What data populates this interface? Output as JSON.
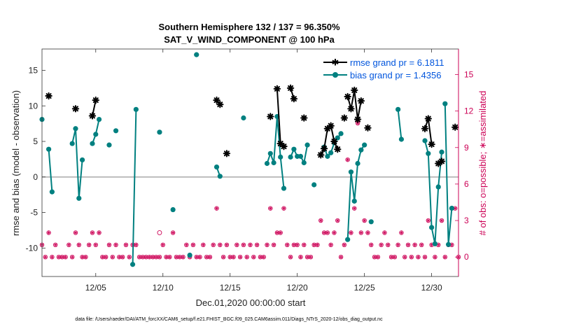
{
  "chart_data": {
    "type": "line",
    "title": "Southern Hemisphere 132 / 137 = 96.350%",
    "subtitle": "SAT_V_WIND_COMPONENT @ 100 hPa",
    "xlabel": "Dec.01,2020 00:00:00 start",
    "ylabel": "rmse and bias (model - observation)",
    "y2label": "# of obs: o=possible; ∗=assimilated",
    "footer": "data file: /Users/raeder/DAI/ATM_forcXX/CAM6_setup/f.e21.FHIST_BGC.f09_025.CAM6assim.011/Diags_NTrS_2020-12/obs_diag_output.nc",
    "xlim": [
      1.0,
      32.0
    ],
    "ylim": [
      -14,
      18
    ],
    "y2lim": [
      -1.6,
      17.1
    ],
    "x_ticks": [
      5,
      10,
      15,
      20,
      25,
      30
    ],
    "x_tick_labels": [
      "12/05",
      "12/10",
      "12/15",
      "12/20",
      "12/25",
      "12/30"
    ],
    "y_ticks": [
      -10,
      -5,
      0,
      5,
      10,
      15
    ],
    "y_tick_labels": [
      "-10",
      "-5",
      "0",
      "5",
      "10",
      "15"
    ],
    "y2_ticks": [
      0,
      3,
      6,
      9,
      12,
      15
    ],
    "y2_tick_labels": [
      "0",
      "3",
      "6",
      "9",
      "12",
      "15"
    ],
    "zero_line": 0,
    "legend": [
      {
        "label": "rmse grand pr = 6.1811",
        "series": "rmse"
      },
      {
        "label": "bias grand pr = 1.4356",
        "series": "bias"
      }
    ],
    "colors": {
      "rmse": "#000000",
      "bias": "#008080",
      "obs": "#cc0055",
      "zero": "#aaaaaa",
      "axis_right": "#cc0055"
    },
    "series": [
      {
        "name": "rmse",
        "segments": [
          [
            [
              1.5,
              11.4
            ]
          ],
          [
            [
              3.5,
              9.6
            ]
          ],
          [
            [
              4.75,
              8.6
            ],
            [
              5.0,
              10.8
            ]
          ],
          [
            [
              14.0,
              10.8
            ],
            [
              14.25,
              10.2
            ]
          ],
          [
            [
              14.75,
              3.3
            ]
          ],
          [
            [
              18.0,
              8.5
            ]
          ],
          [
            [
              18.5,
              12.4
            ],
            [
              18.75,
              4.7
            ],
            [
              19.0,
              4.3
            ]
          ],
          [
            [
              19.5,
              12.5
            ],
            [
              19.75,
              11.0
            ]
          ],
          [
            [
              20.5,
              8.3
            ]
          ],
          [
            [
              21.75,
              3.1
            ],
            [
              22.0,
              4.0
            ],
            [
              22.25,
              6.8
            ],
            [
              22.5,
              7.2
            ],
            [
              22.75,
              5.0
            ],
            [
              23.0,
              3.9
            ]
          ],
          [
            [
              23.5,
              8.3
            ]
          ],
          [
            [
              23.75,
              11.3
            ],
            [
              24.0,
              9.6
            ],
            [
              24.25,
              12.2
            ],
            [
              24.5,
              8.1
            ],
            [
              24.75,
              10.7
            ]
          ],
          [
            [
              25.25,
              6.9
            ]
          ],
          [
            [
              29.5,
              6.8
            ],
            [
              29.75,
              8.2
            ],
            [
              30.0,
              4.6
            ]
          ],
          [
            [
              30.5,
              1.9
            ],
            [
              30.75,
              2.2
            ]
          ],
          [
            [
              31.75,
              7.0
            ]
          ]
        ]
      },
      {
        "name": "bias",
        "segments": [
          [
            [
              1.0,
              8.1
            ]
          ],
          [
            [
              1.5,
              3.9
            ],
            [
              1.75,
              -2.1
            ]
          ],
          [
            [
              3.25,
              4.7
            ],
            [
              3.5,
              6.8
            ],
            [
              3.75,
              -3.0
            ],
            [
              4.0,
              2.4
            ]
          ],
          [
            [
              4.75,
              4.7
            ],
            [
              5.0,
              6.0
            ],
            [
              5.25,
              8.1
            ]
          ],
          [
            [
              6.0,
              4.5
            ]
          ],
          [
            [
              6.5,
              6.5
            ]
          ],
          [
            [
              7.75,
              -12.3
            ],
            [
              8.0,
              9.5
            ]
          ],
          [
            [
              9.75,
              6.3
            ]
          ],
          [
            [
              10.75,
              -4.6
            ]
          ],
          [
            [
              12.0,
              -11.0
            ]
          ],
          [
            [
              12.5,
              17.2
            ]
          ],
          [
            [
              14.0,
              1.4
            ],
            [
              14.25,
              0.1
            ]
          ],
          [
            [
              16.0,
              8.3
            ]
          ],
          [
            [
              17.75,
              1.9
            ],
            [
              18.0,
              3.3
            ],
            [
              18.25,
              2.0
            ],
            [
              18.5,
              8.5
            ],
            [
              18.75,
              2.8
            ],
            [
              19.0,
              -1.6
            ]
          ],
          [
            [
              19.5,
              2.8
            ],
            [
              19.75,
              3.9
            ],
            [
              20.0,
              2.9
            ],
            [
              20.25,
              2.9
            ],
            [
              20.5,
              2.0
            ],
            [
              20.75,
              4.5
            ]
          ],
          [
            [
              21.25,
              -1.1
            ]
          ],
          [
            [
              22.0,
              4.2
            ],
            [
              22.25,
              2.9
            ],
            [
              22.5,
              3.4
            ],
            [
              22.75,
              4.8
            ],
            [
              23.0,
              5.5
            ],
            [
              23.25,
              6.1
            ]
          ],
          [
            [
              23.75,
              -8.8
            ],
            [
              24.0,
              0.7
            ],
            [
              24.25,
              -3.4
            ],
            [
              24.5,
              1.9
            ],
            [
              24.75,
              3.8
            ],
            [
              25.0,
              4.5
            ]
          ],
          [
            [
              25.5,
              -6.3
            ]
          ],
          [
            [
              27.5,
              9.5
            ],
            [
              27.75,
              5.3
            ]
          ],
          [
            [
              29.5,
              5.1
            ],
            [
              29.75,
              3.3
            ],
            [
              30.0,
              -7.1
            ],
            [
              30.25,
              -9.4
            ],
            [
              30.5,
              -1.4
            ],
            [
              30.75,
              3.5
            ]
          ],
          [
            [
              31.0,
              10.3
            ],
            [
              31.25,
              -9.5
            ],
            [
              31.5,
              -4.4
            ]
          ]
        ]
      }
    ],
    "obs_possible": [
      [
        9.75,
        2
      ]
    ],
    "obs_assimilated": [
      [
        1.0,
        1
      ],
      [
        1.25,
        0
      ],
      [
        1.5,
        2
      ],
      [
        1.75,
        0
      ],
      [
        2.0,
        1
      ],
      [
        2.25,
        0
      ],
      [
        2.5,
        0
      ],
      [
        2.75,
        0
      ],
      [
        3.0,
        1
      ],
      [
        3.25,
        0
      ],
      [
        3.5,
        2
      ],
      [
        3.75,
        1
      ],
      [
        4.0,
        0
      ],
      [
        4.25,
        0
      ],
      [
        4.5,
        1
      ],
      [
        4.75,
        2
      ],
      [
        5.0,
        1
      ],
      [
        5.25,
        2
      ],
      [
        5.5,
        0
      ],
      [
        5.75,
        0
      ],
      [
        6.0,
        1
      ],
      [
        6.25,
        0
      ],
      [
        6.5,
        1
      ],
      [
        6.75,
        0
      ],
      [
        7.0,
        0
      ],
      [
        7.25,
        1
      ],
      [
        7.5,
        0
      ],
      [
        7.75,
        1
      ],
      [
        8.0,
        1
      ],
      [
        8.25,
        0
      ],
      [
        8.5,
        0
      ],
      [
        8.75,
        0
      ],
      [
        9.0,
        0
      ],
      [
        9.25,
        0
      ],
      [
        9.5,
        0
      ],
      [
        9.75,
        0
      ],
      [
        10.0,
        1
      ],
      [
        10.25,
        0
      ],
      [
        10.5,
        0
      ],
      [
        10.75,
        2
      ],
      [
        11.0,
        0
      ],
      [
        11.25,
        0
      ],
      [
        11.5,
        0
      ],
      [
        11.75,
        1
      ],
      [
        12.0,
        0
      ],
      [
        12.25,
        1
      ],
      [
        12.5,
        0
      ],
      [
        12.75,
        0
      ],
      [
        13.0,
        1
      ],
      [
        13.25,
        0
      ],
      [
        13.5,
        0
      ],
      [
        13.75,
        1
      ],
      [
        14.0,
        4
      ],
      [
        14.25,
        1
      ],
      [
        14.5,
        0
      ],
      [
        14.75,
        1
      ],
      [
        15.0,
        0
      ],
      [
        15.25,
        0
      ],
      [
        15.5,
        1
      ],
      [
        15.75,
        0
      ],
      [
        16.0,
        1
      ],
      [
        16.25,
        0
      ],
      [
        16.5,
        1
      ],
      [
        16.75,
        0
      ],
      [
        17.0,
        1
      ],
      [
        17.25,
        0
      ],
      [
        17.5,
        0
      ],
      [
        17.75,
        1
      ],
      [
        18.0,
        4
      ],
      [
        18.25,
        1
      ],
      [
        18.5,
        2
      ],
      [
        18.75,
        2
      ],
      [
        19.0,
        4
      ],
      [
        19.25,
        1
      ],
      [
        19.5,
        0
      ],
      [
        19.75,
        1
      ],
      [
        20.0,
        1
      ],
      [
        20.25,
        0
      ],
      [
        20.5,
        1
      ],
      [
        20.75,
        0
      ],
      [
        21.0,
        0
      ],
      [
        21.25,
        1
      ],
      [
        21.5,
        1
      ],
      [
        21.75,
        3
      ],
      [
        22.0,
        2
      ],
      [
        22.25,
        2
      ],
      [
        22.5,
        1
      ],
      [
        22.75,
        2
      ],
      [
        23.0,
        3
      ],
      [
        23.25,
        0
      ],
      [
        23.5,
        1
      ],
      [
        23.75,
        8
      ],
      [
        24.0,
        2
      ],
      [
        24.25,
        4
      ],
      [
        24.5,
        11
      ],
      [
        24.75,
        2
      ],
      [
        25.0,
        3
      ],
      [
        25.25,
        2
      ],
      [
        25.5,
        1
      ],
      [
        25.75,
        0
      ],
      [
        26.0,
        0
      ],
      [
        26.25,
        1
      ],
      [
        26.5,
        2
      ],
      [
        26.75,
        1
      ],
      [
        27.0,
        0
      ],
      [
        27.25,
        0
      ],
      [
        27.5,
        1
      ],
      [
        27.75,
        2
      ],
      [
        28.0,
        0
      ],
      [
        28.25,
        1
      ],
      [
        28.5,
        0
      ],
      [
        28.75,
        1
      ],
      [
        29.0,
        0
      ],
      [
        29.25,
        1
      ],
      [
        29.5,
        0
      ],
      [
        29.75,
        3
      ],
      [
        30.0,
        1
      ],
      [
        30.25,
        0
      ],
      [
        30.5,
        1
      ],
      [
        30.75,
        3
      ],
      [
        31.0,
        0
      ],
      [
        31.25,
        1
      ],
      [
        31.5,
        1
      ],
      [
        31.75,
        4
      ],
      [
        32.0,
        0
      ]
    ]
  }
}
